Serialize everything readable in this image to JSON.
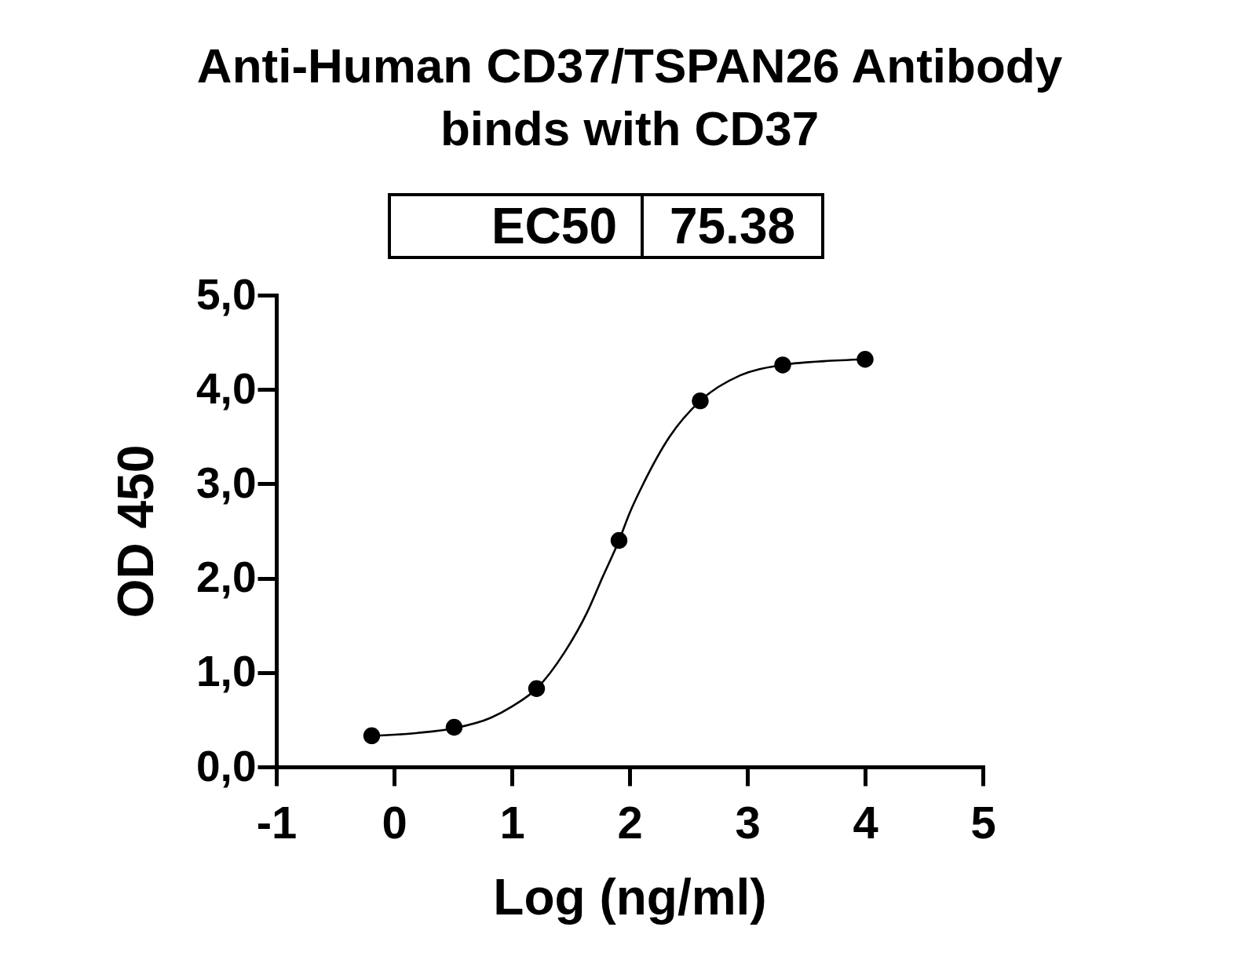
{
  "chart_data": {
    "type": "scatter",
    "title": "Anti-Human CD37/TSPAN26 Antibody binds with CD37",
    "xlabel": "Log (ng/ml)",
    "ylabel": "OD 450",
    "annotations": [
      "EC50",
      "75.38"
    ],
    "series": [
      {
        "color": "#000000",
        "marker": "circle",
        "x": [
          -0.19,
          0.51,
          1.21,
          1.91,
          2.6,
          3.3,
          4.0
        ],
        "values": [
          0.33,
          0.42,
          0.83,
          2.4,
          3.88,
          4.26,
          4.32
        ]
      },
      {
        "type": "line",
        "color": "#000000",
        "marker": "none",
        "line_style": "solid",
        "x": [
          -0.19,
          0.2,
          0.51,
          0.82,
          1.0,
          1.21,
          1.45,
          1.64,
          1.77,
          1.91,
          2.0,
          2.12,
          2.34,
          2.6,
          2.94,
          3.3,
          3.65,
          4.0
        ],
        "values": [
          0.33,
          0.36,
          0.41,
          0.52,
          0.64,
          0.83,
          1.22,
          1.64,
          2.01,
          2.4,
          2.69,
          3.01,
          3.5,
          3.88,
          4.15,
          4.26,
          4.3,
          4.32
        ]
      }
    ],
    "xlim": [
      -1,
      5
    ],
    "xticks": [
      -1,
      0,
      1,
      2,
      3,
      4,
      5
    ],
    "ylim": [
      0,
      5
    ],
    "yticks": [
      {
        "value": 0,
        "label": "0,0"
      },
      {
        "value": 1,
        "label": "1,0"
      },
      {
        "value": 2,
        "label": "2,0"
      },
      {
        "value": 3,
        "label": "3,0"
      },
      {
        "value": 4,
        "label": "4,0"
      },
      {
        "value": 5,
        "label": "5,0"
      }
    ],
    "grid": false
  }
}
